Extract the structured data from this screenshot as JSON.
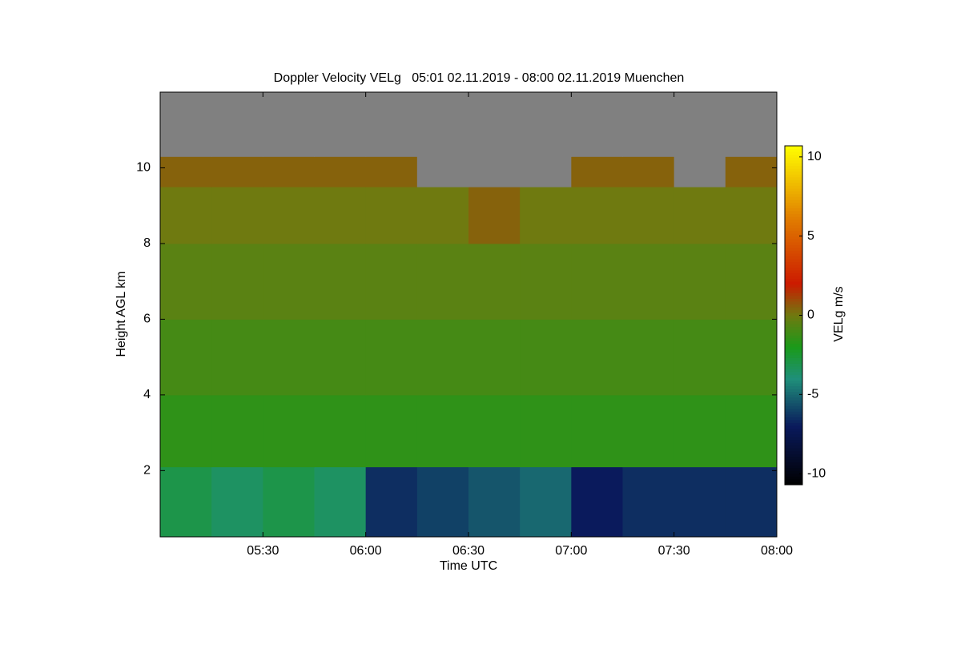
{
  "chart_data": {
    "type": "heatmap",
    "title": "Doppler Velocity VELg   05:01 02.11.2019 - 08:00 02.11.2019 Muenchen",
    "x_label": "Time UTC",
    "y_label": "Height AGL km",
    "colorbar_label": "VELg m/s",
    "xlim": [
      5.0,
      8.0
    ],
    "xticks": [
      {
        "value": 5.5,
        "label": "05:30"
      },
      {
        "value": 6.0,
        "label": "06:00"
      },
      {
        "value": 6.5,
        "label": "06:30"
      },
      {
        "value": 7.0,
        "label": "07:00"
      },
      {
        "value": 7.5,
        "label": "07:30"
      },
      {
        "value": 8.0,
        "label": "08:00"
      }
    ],
    "ylim": [
      0.25,
      12
    ],
    "yticks": [
      2,
      4,
      6,
      8,
      10
    ],
    "zlim": [
      -10.7,
      10.7
    ],
    "zticks": [
      -10,
      -5,
      0,
      5,
      10
    ],
    "x_edges": [
      5.0,
      5.25,
      5.5,
      5.75,
      6.0,
      6.25,
      6.5,
      6.75,
      7.0,
      7.25,
      7.5,
      7.75,
      8.0
    ],
    "y_edges": [
      0.25,
      2.1,
      4,
      6,
      8,
      9.5,
      10.3,
      12
    ],
    "z": [
      [
        -3,
        -3.5,
        -3,
        -3.5,
        -6.5,
        -6,
        -5.5,
        -5,
        -7,
        -6.5,
        -6.5,
        -6.5
      ],
      [
        -1.5,
        -1.5,
        -1.5,
        -1.5,
        -1.5,
        -1.5,
        -1.5,
        -1.5,
        -1.5,
        -1.5,
        -1.5,
        -1.5
      ],
      [
        -1,
        -1,
        -1,
        -1,
        -1,
        -1,
        -1,
        -1,
        -1,
        -1,
        -1,
        -1
      ],
      [
        -0.5,
        -0.5,
        -0.5,
        -0.5,
        -0.5,
        -0.5,
        -0.5,
        -0.5,
        -0.5,
        -0.5,
        -0.5,
        -0.5
      ],
      [
        0,
        0,
        0,
        0,
        0,
        0,
        0.5,
        0,
        0,
        0,
        0,
        0
      ],
      [
        0.5,
        0.5,
        0.5,
        0.5,
        0.5,
        null,
        null,
        null,
        0.5,
        0.5,
        null,
        0.5
      ],
      [
        null,
        null,
        null,
        null,
        null,
        null,
        null,
        null,
        null,
        null,
        null,
        null
      ]
    ],
    "colorscale": [
      [
        -10.7,
        "#000000"
      ],
      [
        -7,
        "#0a1a5c"
      ],
      [
        -4,
        "#1f8f7a"
      ],
      [
        -2,
        "#1a9a1a"
      ],
      [
        0,
        "#6f7a10"
      ],
      [
        2,
        "#cc1a00"
      ],
      [
        6,
        "#e07a00"
      ],
      [
        10.7,
        "#ffff00"
      ]
    ],
    "null_color": "#808080"
  }
}
